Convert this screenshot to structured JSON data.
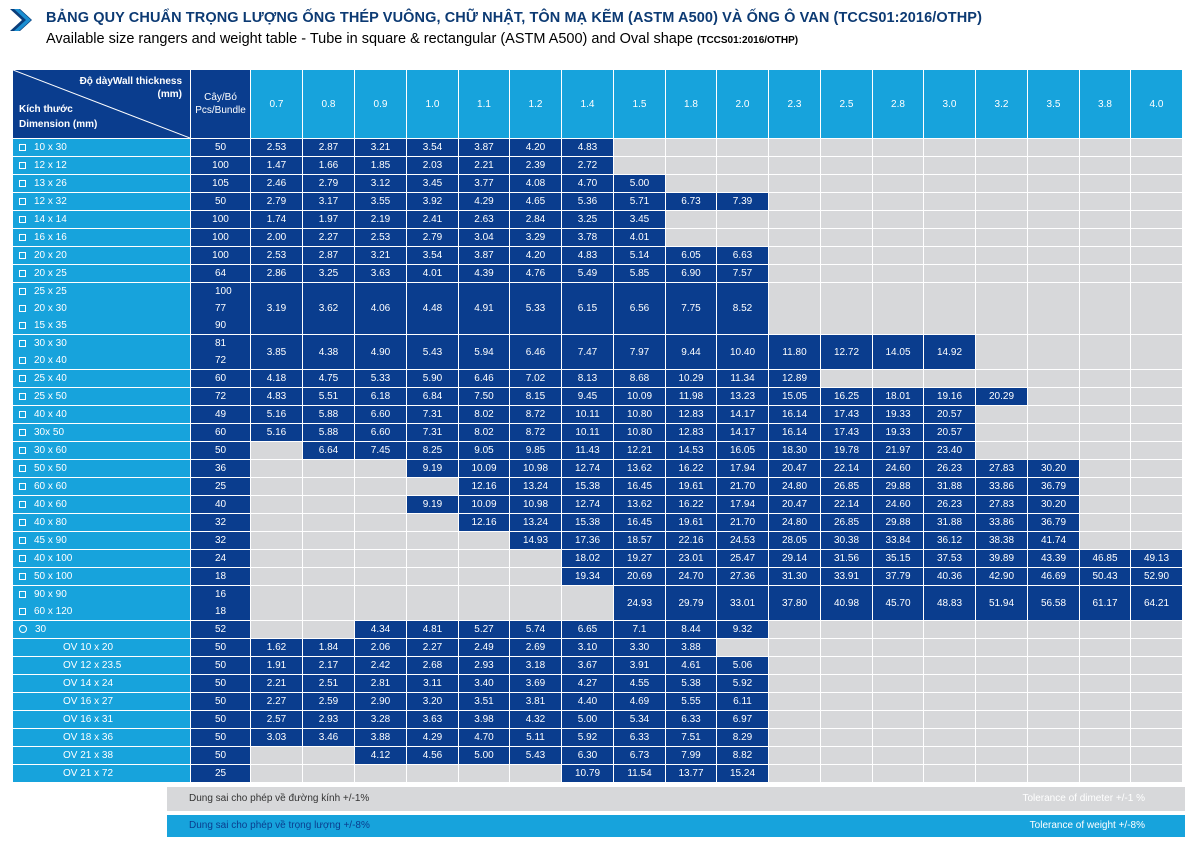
{
  "header": {
    "title_vi": "BẢNG QUY CHUẨN TRỌNG LƯỢNG ỐNG THÉP VUÔNG, CHỮ NHẬT, TÔN MẠ KẼM (ASTM A500) VÀ ỐNG Ô VAN (TCCS01:2016/OTHP)",
    "title_en": "Available size rangers and weight table - Tube in square & rectangular (ASTM A500) and Oval shape",
    "title_en_small": "(TCCS01:2016/OTHP)"
  },
  "table": {
    "corner_thickness": "Độ dàyWall thickness",
    "corner_unit": "(mm)",
    "corner_dim_vi": "Kích thước",
    "corner_dim_en": "Dimension (mm)",
    "count_header_1": "Cây/Bó",
    "count_header_2": "Pcs/Bundle",
    "thickness": [
      "0.7",
      "0.8",
      "0.9",
      "1.0",
      "1.1",
      "1.2",
      "1.4",
      "1.5",
      "1.8",
      "2.0",
      "2.3",
      "2.5",
      "2.8",
      "3.0",
      "3.2",
      "3.5",
      "3.8",
      "4.0"
    ],
    "groups": [
      {
        "sizes": [
          {
            "label": "10 x 30",
            "count": "50",
            "shape": "square"
          }
        ],
        "values": [
          "2.53",
          "2.87",
          "3.21",
          "3.54",
          "3.87",
          "4.20",
          "4.83",
          "",
          "",
          "",
          "",
          "",
          "",
          "",
          "",
          "",
          "",
          ""
        ]
      },
      {
        "sizes": [
          {
            "label": "12 x 12",
            "count": "100",
            "shape": "square"
          }
        ],
        "values": [
          "1.47",
          "1.66",
          "1.85",
          "2.03",
          "2.21",
          "2.39",
          "2.72",
          "",
          "",
          "",
          "",
          "",
          "",
          "",
          "",
          "",
          "",
          ""
        ]
      },
      {
        "sizes": [
          {
            "label": "13 x 26",
            "count": "105",
            "shape": "square"
          }
        ],
        "values": [
          "2.46",
          "2.79",
          "3.12",
          "3.45",
          "3.77",
          "4.08",
          "4.70",
          "5.00",
          "",
          "",
          "",
          "",
          "",
          "",
          "",
          "",
          "",
          ""
        ]
      },
      {
        "sizes": [
          {
            "label": "12 x 32",
            "count": "50",
            "shape": "square"
          }
        ],
        "values": [
          "2.79",
          "3.17",
          "3.55",
          "3.92",
          "4.29",
          "4.65",
          "5.36",
          "5.71",
          "6.73",
          "7.39",
          "",
          "",
          "",
          "",
          "",
          "",
          "",
          ""
        ]
      },
      {
        "sizes": [
          {
            "label": "14 x 14",
            "count": "100",
            "shape": "square"
          }
        ],
        "values": [
          "1.74",
          "1.97",
          "2.19",
          "2.41",
          "2.63",
          "2.84",
          "3.25",
          "3.45",
          "",
          "",
          "",
          "",
          "",
          "",
          "",
          "",
          "",
          ""
        ]
      },
      {
        "sizes": [
          {
            "label": "16 x 16",
            "count": "100",
            "shape": "square"
          }
        ],
        "values": [
          "2.00",
          "2.27",
          "2.53",
          "2.79",
          "3.04",
          "3.29",
          "3.78",
          "4.01",
          "",
          "",
          "",
          "",
          "",
          "",
          "",
          "",
          "",
          ""
        ]
      },
      {
        "sizes": [
          {
            "label": "20 x 20",
            "count": "100",
            "shape": "square"
          }
        ],
        "values": [
          "2.53",
          "2.87",
          "3.21",
          "3.54",
          "3.87",
          "4.20",
          "4.83",
          "5.14",
          "6.05",
          "6.63",
          "",
          "",
          "",
          "",
          "",
          "",
          "",
          ""
        ]
      },
      {
        "sizes": [
          {
            "label": "20 x 25",
            "count": "64",
            "shape": "square"
          }
        ],
        "values": [
          "2.86",
          "3.25",
          "3.63",
          "4.01",
          "4.39",
          "4.76",
          "5.49",
          "5.85",
          "6.90",
          "7.57",
          "",
          "",
          "",
          "",
          "",
          "",
          "",
          ""
        ]
      },
      {
        "sizes": [
          {
            "label": "25 x 25",
            "count": "100",
            "shape": "square"
          },
          {
            "label": "20 x 30",
            "count": "77",
            "shape": "square"
          },
          {
            "label": "15 x 35",
            "count": "90",
            "shape": "square"
          }
        ],
        "values": [
          "3.19",
          "3.62",
          "4.06",
          "4.48",
          "4.91",
          "5.33",
          "6.15",
          "6.56",
          "7.75",
          "8.52",
          "",
          "",
          "",
          "",
          "",
          "",
          "",
          ""
        ]
      },
      {
        "sizes": [
          {
            "label": "30 x 30",
            "count": "81",
            "shape": "square"
          },
          {
            "label": "20 x 40",
            "count": "72",
            "shape": "square"
          }
        ],
        "values": [
          "3.85",
          "4.38",
          "4.90",
          "5.43",
          "5.94",
          "6.46",
          "7.47",
          "7.97",
          "9.44",
          "10.40",
          "11.80",
          "12.72",
          "14.05",
          "14.92",
          "",
          "",
          "",
          ""
        ]
      },
      {
        "sizes": [
          {
            "label": "25 x 40",
            "count": "60",
            "shape": "square"
          }
        ],
        "values": [
          "4.18",
          "4.75",
          "5.33",
          "5.90",
          "6.46",
          "7.02",
          "8.13",
          "8.68",
          "10.29",
          "11.34",
          "12.89",
          "",
          "",
          "",
          "",
          "",
          "",
          ""
        ]
      },
      {
        "sizes": [
          {
            "label": "25 x 50",
            "count": "72",
            "shape": "square"
          }
        ],
        "values": [
          "4.83",
          "5.51",
          "6.18",
          "6.84",
          "7.50",
          "8.15",
          "9.45",
          "10.09",
          "11.98",
          "13.23",
          "15.05",
          "16.25",
          "18.01",
          "19.16",
          "20.29",
          "",
          "",
          ""
        ]
      },
      {
        "sizes": [
          {
            "label": "40 x 40",
            "count": "49",
            "shape": "square"
          }
        ],
        "values": [
          "5.16",
          "5.88",
          "6.60",
          "7.31",
          "8.02",
          "8.72",
          "10.11",
          "10.80",
          "12.83",
          "14.17",
          "16.14",
          "17.43",
          "19.33",
          "20.57",
          "",
          "",
          "",
          ""
        ]
      },
      {
        "sizes": [
          {
            "label": "30x 50",
            "count": "60",
            "shape": "square"
          }
        ],
        "values": [
          "5.16",
          "5.88",
          "6.60",
          "7.31",
          "8.02",
          "8.72",
          "10.11",
          "10.80",
          "12.83",
          "14.17",
          "16.14",
          "17.43",
          "19.33",
          "20.57",
          "",
          "",
          "",
          ""
        ]
      },
      {
        "sizes": [
          {
            "label": "30 x 60",
            "count": "50",
            "shape": "square"
          }
        ],
        "values": [
          "",
          "6.64",
          "7.45",
          "8.25",
          "9.05",
          "9.85",
          "11.43",
          "12.21",
          "14.53",
          "16.05",
          "18.30",
          "19.78",
          "21.97",
          "23.40",
          "",
          "",
          "",
          ""
        ]
      },
      {
        "sizes": [
          {
            "label": "50 x 50",
            "count": "36",
            "shape": "square"
          }
        ],
        "values": [
          "",
          "",
          "",
          "9.19",
          "10.09",
          "10.98",
          "12.74",
          "13.62",
          "16.22",
          "17.94",
          "20.47",
          "22.14",
          "24.60",
          "26.23",
          "27.83",
          "30.20",
          "",
          ""
        ]
      },
      {
        "sizes": [
          {
            "label": "60 x 60",
            "count": "25",
            "shape": "square"
          }
        ],
        "values": [
          "",
          "",
          "",
          "",
          "12.16",
          "13.24",
          "15.38",
          "16.45",
          "19.61",
          "21.70",
          "24.80",
          "26.85",
          "29.88",
          "31.88",
          "33.86",
          "36.79",
          "",
          ""
        ]
      },
      {
        "sizes": [
          {
            "label": "40 x 60",
            "count": "40",
            "shape": "square"
          }
        ],
        "values": [
          "",
          "",
          "",
          "9.19",
          "10.09",
          "10.98",
          "12.74",
          "13.62",
          "16.22",
          "17.94",
          "20.47",
          "22.14",
          "24.60",
          "26.23",
          "27.83",
          "30.20",
          "",
          ""
        ]
      },
      {
        "sizes": [
          {
            "label": "40 x 80",
            "count": "32",
            "shape": "square"
          }
        ],
        "values": [
          "",
          "",
          "",
          "",
          "12.16",
          "13.24",
          "15.38",
          "16.45",
          "19.61",
          "21.70",
          "24.80",
          "26.85",
          "29.88",
          "31.88",
          "33.86",
          "36.79",
          "",
          ""
        ]
      },
      {
        "sizes": [
          {
            "label": "45 x 90",
            "count": "32",
            "shape": "square"
          }
        ],
        "values": [
          "",
          "",
          "",
          "",
          "",
          "14.93",
          "17.36",
          "18.57",
          "22.16",
          "24.53",
          "28.05",
          "30.38",
          "33.84",
          "36.12",
          "38.38",
          "41.74",
          "",
          ""
        ]
      },
      {
        "sizes": [
          {
            "label": "40 x 100",
            "count": "24",
            "shape": "square"
          }
        ],
        "values": [
          "",
          "",
          "",
          "",
          "",
          "",
          "18.02",
          "19.27",
          "23.01",
          "25.47",
          "29.14",
          "31.56",
          "35.15",
          "37.53",
          "39.89",
          "43.39",
          "46.85",
          "49.13"
        ]
      },
      {
        "sizes": [
          {
            "label": "50 x 100",
            "count": "18",
            "shape": "square"
          }
        ],
        "values": [
          "",
          "",
          "",
          "",
          "",
          "",
          "19.34",
          "20.69",
          "24.70",
          "27.36",
          "31.30",
          "33.91",
          "37.79",
          "40.36",
          "42.90",
          "46.69",
          "50.43",
          "52.90"
        ]
      },
      {
        "sizes": [
          {
            "label": "90 x 90",
            "count": "16",
            "shape": "square"
          },
          {
            "label": "60 x 120",
            "count": "18",
            "shape": "square"
          }
        ],
        "values": [
          "",
          "",
          "",
          "",
          "",
          "",
          "",
          "24.93",
          "29.79",
          "33.01",
          "37.80",
          "40.98",
          "45.70",
          "48.83",
          "51.94",
          "56.58",
          "61.17",
          "64.21"
        ]
      },
      {
        "sizes": [
          {
            "label": "30",
            "count": "52",
            "shape": "circle"
          }
        ],
        "values": [
          "",
          "",
          "4.34",
          "4.81",
          "5.27",
          "5.74",
          "6.65",
          "7.1",
          "8.44",
          "9.32",
          "",
          "",
          "",
          "",
          "",
          "",
          "",
          ""
        ]
      },
      {
        "sizes": [
          {
            "label": "OV 10 x 20",
            "count": "50",
            "shape": "none"
          }
        ],
        "values": [
          "1.62",
          "1.84",
          "2.06",
          "2.27",
          "2.49",
          "2.69",
          "3.10",
          "3.30",
          "3.88",
          "",
          "",
          "",
          "",
          "",
          "",
          "",
          "",
          ""
        ]
      },
      {
        "sizes": [
          {
            "label": "OV 12 x 23.5",
            "count": "50",
            "shape": "none"
          }
        ],
        "values": [
          "1.91",
          "2.17",
          "2.42",
          "2.68",
          "2.93",
          "3.18",
          "3.67",
          "3.91",
          "4.61",
          "5.06",
          "",
          "",
          "",
          "",
          "",
          "",
          "",
          ""
        ]
      },
      {
        "sizes": [
          {
            "label": "OV 14 x 24",
            "count": "50",
            "shape": "none"
          }
        ],
        "values": [
          "2.21",
          "2.51",
          "2.81",
          "3.11",
          "3.40",
          "3.69",
          "4.27",
          "4.55",
          "5.38",
          "5.92",
          "",
          "",
          "",
          "",
          "",
          "",
          "",
          ""
        ]
      },
      {
        "sizes": [
          {
            "label": "OV 16 x 27",
            "count": "50",
            "shape": "none"
          }
        ],
        "values": [
          "2.27",
          "2.59",
          "2.90",
          "3.20",
          "3.51",
          "3.81",
          "4.40",
          "4.69",
          "5.55",
          "6.11",
          "",
          "",
          "",
          "",
          "",
          "",
          "",
          ""
        ]
      },
      {
        "sizes": [
          {
            "label": "OV 16 x 31",
            "count": "50",
            "shape": "none"
          }
        ],
        "values": [
          "2.57",
          "2.93",
          "3.28",
          "3.63",
          "3.98",
          "4.32",
          "5.00",
          "5.34",
          "6.33",
          "6.97",
          "",
          "",
          "",
          "",
          "",
          "",
          "",
          ""
        ]
      },
      {
        "sizes": [
          {
            "label": "OV 18 x 36",
            "count": "50",
            "shape": "none"
          }
        ],
        "values": [
          "3.03",
          "3.46",
          "3.88",
          "4.29",
          "4.70",
          "5.11",
          "5.92",
          "6.33",
          "7.51",
          "8.29",
          "",
          "",
          "",
          "",
          "",
          "",
          "",
          ""
        ]
      },
      {
        "sizes": [
          {
            "label": "OV 21 x 38",
            "count": "50",
            "shape": "none"
          }
        ],
        "values": [
          "",
          "",
          "4.12",
          "4.56",
          "5.00",
          "5.43",
          "6.30",
          "6.73",
          "7.99",
          "8.82",
          "",
          "",
          "",
          "",
          "",
          "",
          "",
          ""
        ]
      },
      {
        "sizes": [
          {
            "label": "OV 21 x 72",
            "count": "25",
            "shape": "none"
          }
        ],
        "values": [
          "",
          "",
          "",
          "",
          "",
          "",
          "10.79",
          "11.54",
          "13.77",
          "15.24",
          "",
          "",
          "",
          "",
          "",
          "",
          "",
          ""
        ]
      }
    ]
  },
  "footer": {
    "dia_vi": "Dung sai cho phép về đường kính +/-1%",
    "dia_en": "Tolerance of dimeter +/-1 %",
    "wt_vi": "Dung sai cho phép về trọng lượng +/-8%",
    "wt_en": "Tolerance of weight +/-8%"
  },
  "colors": {
    "dark_blue": "#0a3d8e",
    "light_blue": "#17a3dc",
    "grey": "#d7d8da",
    "title_blue": "#0c3a73"
  }
}
